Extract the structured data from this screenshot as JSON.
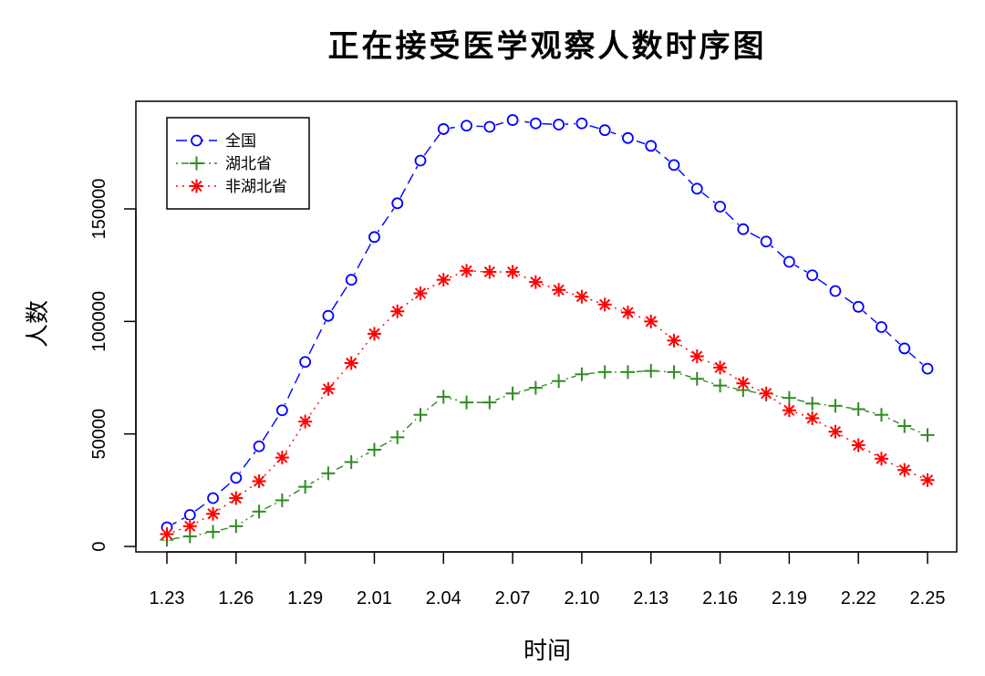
{
  "chart_data": {
    "type": "line",
    "title": "正在接受医学观察人数时序图",
    "xlabel": "时间",
    "ylabel": "人数",
    "x": [
      "1.23",
      "1.24",
      "1.25",
      "1.26",
      "1.27",
      "1.28",
      "1.29",
      "1.30",
      "1.31",
      "2.01",
      "2.02",
      "2.03",
      "2.04",
      "2.05",
      "2.06",
      "2.07",
      "2.08",
      "2.09",
      "2.10",
      "2.11",
      "2.12",
      "2.13",
      "2.14",
      "2.15",
      "2.16",
      "2.17",
      "2.18",
      "2.19",
      "2.20",
      "2.21",
      "2.22",
      "2.23",
      "2.24",
      "2.25"
    ],
    "x_tick_labels": [
      "1.23",
      "1.26",
      "1.29",
      "2.01",
      "2.04",
      "2.07",
      "2.10",
      "2.13",
      "2.16",
      "2.19",
      "2.22",
      "2.25"
    ],
    "y_ticks": [
      0,
      50000,
      100000,
      150000
    ],
    "y_tick_labels": [
      "0",
      "50000",
      "100000",
      "150000"
    ],
    "ylim": [
      -2000,
      195000
    ],
    "grid": false,
    "legend_position": "top-left",
    "series": [
      {
        "name": "全国",
        "color": "#0000ff",
        "marker": "circle",
        "line": "dashed",
        "values": [
          8500,
          14000,
          21500,
          30500,
          44500,
          60500,
          82000,
          102500,
          118500,
          137500,
          152500,
          171500,
          185500,
          187000,
          186500,
          189500,
          188000,
          187500,
          188000,
          185000,
          181500,
          178000,
          169500,
          159000,
          151000,
          141000,
          135500,
          126500,
          120500,
          113500,
          106500,
          97500,
          88000,
          79000
        ]
      },
      {
        "name": "湖北省",
        "color": "#2e8b20",
        "marker": "plus",
        "line": "dotdash",
        "values": [
          3000,
          4500,
          6500,
          9000,
          15500,
          20500,
          26500,
          32500,
          37500,
          43000,
          48500,
          58500,
          66500,
          64000,
          64000,
          68000,
          70500,
          73500,
          76500,
          77500,
          77500,
          78000,
          77500,
          74500,
          71500,
          69500,
          67500,
          66000,
          63500,
          62500,
          61000,
          58500,
          53500,
          49500
        ]
      },
      {
        "name": "非湖北省",
        "color": "#ff0000",
        "marker": "star",
        "line": "dotted",
        "values": [
          5500,
          9000,
          14500,
          21500,
          29000,
          39500,
          55500,
          70000,
          81500,
          94500,
          104500,
          112500,
          118500,
          122500,
          122000,
          122000,
          117500,
          114000,
          111000,
          107500,
          104000,
          100000,
          91500,
          84500,
          79500,
          72500,
          68000,
          60500,
          57000,
          51000,
          45000,
          39000,
          34000,
          29500
        ]
      }
    ]
  }
}
